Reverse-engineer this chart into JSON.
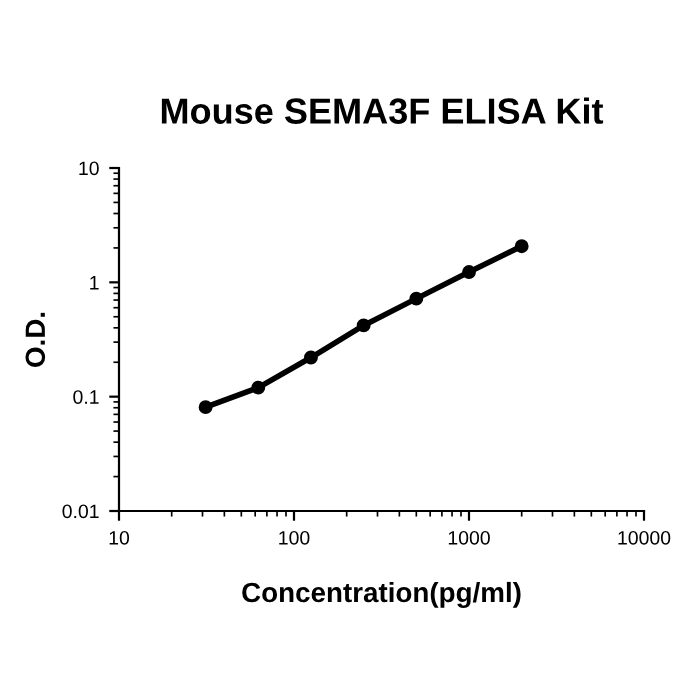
{
  "chart_data": {
    "type": "line",
    "title": "Mouse SEMA3F ELISA Kit",
    "xlabel": "Concentration(pg/ml)",
    "ylabel": "O.D.",
    "log": "xy",
    "x": [
      31.25,
      62.5,
      125,
      250,
      500,
      1000,
      2000
    ],
    "series": [
      {
        "color": "#000000",
        "values": [
          0.081,
          0.12,
          0.22,
          0.42,
          0.72,
          1.23,
          2.07
        ]
      }
    ],
    "xlim": [
      10,
      10000
    ],
    "xticks": [
      10,
      100,
      1000,
      10000
    ],
    "ylim": [
      0.01,
      10
    ],
    "yticks": [
      0.01,
      0.1,
      1,
      10
    ],
    "marker": "circle",
    "line_style": "solid",
    "grid": false,
    "legend": false
  }
}
